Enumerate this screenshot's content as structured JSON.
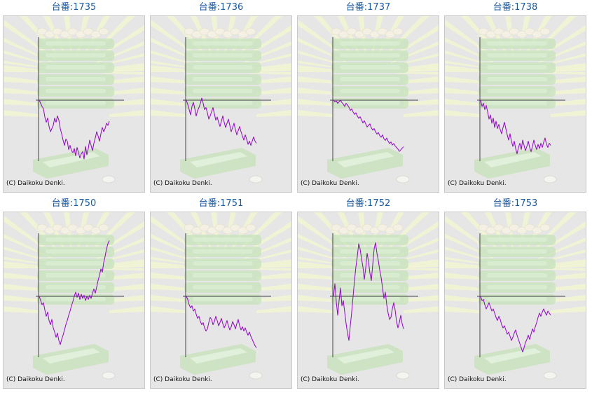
{
  "colors": {
    "title_text": "#1a5aa0",
    "background": "#e6e6e6",
    "line": "#9400d3",
    "axis": "#444444",
    "artwork_green": "#c9e2bd",
    "artwork_rays": "#f1f4d4"
  },
  "charts": [
    {
      "title": "台番:1735",
      "copyright": "(C) Daikoku Denki.",
      "chart_data": {
        "type": "line",
        "x": [
          0,
          1,
          2,
          3,
          4,
          5,
          6,
          7,
          8,
          9,
          10,
          11,
          12,
          13,
          14,
          15,
          16,
          17,
          18,
          19,
          20,
          21,
          22,
          23,
          24,
          25,
          26,
          27,
          28,
          29,
          30,
          31,
          32,
          33,
          34,
          35,
          36,
          37,
          38,
          39,
          40,
          41,
          42,
          43,
          44,
          45,
          46,
          47,
          48,
          49,
          50
        ],
        "values": [
          0,
          -300,
          -600,
          -800,
          -1600,
          -2100,
          -1700,
          -2500,
          -3000,
          -2700,
          -2400,
          -1700,
          -2100,
          -1500,
          -1900,
          -2700,
          -3200,
          -3800,
          -4300,
          -3700,
          -3900,
          -4700,
          -4300,
          -4800,
          -5000,
          -4600,
          -5300,
          -4500,
          -5000,
          -5500,
          -5100,
          -4900,
          -5600,
          -4400,
          -5200,
          -4600,
          -3800,
          -4300,
          -4800,
          -4100,
          -3600,
          -3000,
          -3400,
          -3900,
          -3200,
          -2600,
          -3000,
          -2700,
          -2200,
          -2400,
          -2000
        ],
        "ylim": [
          -6000,
          6000
        ],
        "grid": false
      }
    },
    {
      "title": "台番:1736",
      "copyright": "(C) Daikoku Denki.",
      "chart_data": {
        "type": "line",
        "x": [
          0,
          1,
          2,
          3,
          4,
          5,
          6,
          7,
          8,
          9,
          10,
          11,
          12,
          13,
          14,
          15,
          16,
          17,
          18,
          19,
          20,
          21,
          22,
          23,
          24,
          25,
          26,
          27,
          28,
          29,
          30,
          31,
          32,
          33,
          34,
          35,
          36,
          37,
          38,
          39,
          40,
          41,
          42,
          43,
          44,
          45,
          46,
          47,
          48,
          49,
          50
        ],
        "values": [
          0,
          -400,
          -900,
          -1400,
          -600,
          -200,
          -800,
          -1500,
          -1000,
          -700,
          -300,
          200,
          -300,
          -900,
          -700,
          -1200,
          -1800,
          -1500,
          -1100,
          -700,
          -1300,
          -1900,
          -1600,
          -2100,
          -2500,
          -2000,
          -1500,
          -2100,
          -2600,
          -2200,
          -1800,
          -2400,
          -3000,
          -2600,
          -2200,
          -2800,
          -3300,
          -2900,
          -2500,
          -3000,
          -3400,
          -3800,
          -3300,
          -3700,
          -4200,
          -3900,
          -4300,
          -3900,
          -3500,
          -3900,
          -4100
        ],
        "ylim": [
          -6000,
          6000
        ],
        "grid": false
      }
    },
    {
      "title": "台番:1737",
      "copyright": "(C) Daikoku Denki.",
      "chart_data": {
        "type": "line",
        "x": [
          0,
          1,
          2,
          3,
          4,
          5,
          6,
          7,
          8,
          9,
          10,
          11,
          12,
          13,
          14,
          15,
          16,
          17,
          18,
          19,
          20,
          21,
          22,
          23,
          24,
          25,
          26,
          27,
          28,
          29,
          30,
          31,
          32,
          33,
          34,
          35,
          36,
          37,
          38,
          39,
          40,
          41,
          42,
          43,
          44,
          45,
          46,
          47,
          48,
          49,
          50
        ],
        "values": [
          0,
          -200,
          -100,
          -400,
          -200,
          0,
          -300,
          -500,
          -800,
          -400,
          -600,
          -900,
          -1300,
          -1100,
          -1500,
          -1800,
          -1600,
          -2000,
          -2300,
          -2100,
          -2500,
          -2900,
          -2600,
          -3000,
          -3400,
          -3200,
          -3000,
          -3500,
          -3800,
          -3600,
          -4000,
          -4300,
          -4100,
          -4500,
          -4700,
          -4400,
          -4900,
          -5100,
          -4800,
          -5200,
          -5500,
          -5300,
          -5700,
          -5500,
          -5800,
          -6000,
          -6200,
          -6500,
          -6300,
          -6100,
          -5900
        ],
        "ylim": [
          -8000,
          8000
        ],
        "grid": false
      }
    },
    {
      "title": "台番:1738",
      "copyright": "(C) Daikoku Denki.",
      "chart_data": {
        "type": "line",
        "x": [
          0,
          1,
          2,
          3,
          4,
          5,
          6,
          7,
          8,
          9,
          10,
          11,
          12,
          13,
          14,
          15,
          16,
          17,
          18,
          19,
          20,
          21,
          22,
          23,
          24,
          25,
          26,
          27,
          28,
          29,
          30,
          31,
          32,
          33,
          34,
          35,
          36,
          37,
          38,
          39,
          40,
          41,
          42,
          43,
          44,
          45,
          46,
          47,
          48,
          49,
          50
        ],
        "values": [
          0,
          -600,
          -300,
          -900,
          -500,
          -1100,
          -1800,
          -1400,
          -2200,
          -1700,
          -2600,
          -2000,
          -2700,
          -2300,
          -2800,
          -3200,
          -2600,
          -2100,
          -2700,
          -3300,
          -3800,
          -3200,
          -3900,
          -4400,
          -3900,
          -4600,
          -5100,
          -4500,
          -4100,
          -4700,
          -3800,
          -4300,
          -4800,
          -4400,
          -3900,
          -4500,
          -4900,
          -4400,
          -3800,
          -4300,
          -4700,
          -4200,
          -4600,
          -4100,
          -4500,
          -4000,
          -3600,
          -4200,
          -4500,
          -4100,
          -4300
        ],
        "ylim": [
          -6000,
          6000
        ],
        "grid": false
      }
    },
    {
      "title": "台番:1750",
      "copyright": "(C) Daikoku Denki.",
      "chart_data": {
        "type": "line",
        "x": [
          0,
          1,
          2,
          3,
          4,
          5,
          6,
          7,
          8,
          9,
          10,
          11,
          12,
          13,
          14,
          15,
          16,
          17,
          18,
          19,
          20,
          21,
          22,
          23,
          24,
          25,
          26,
          27,
          28,
          29,
          30,
          31,
          32,
          33,
          34,
          35,
          36,
          37,
          38,
          39,
          40,
          41,
          42,
          43,
          44,
          45,
          46,
          47,
          48,
          49,
          50
        ],
        "values": [
          0,
          -400,
          -800,
          -600,
          -1300,
          -1900,
          -1500,
          -2300,
          -2700,
          -2200,
          -3000,
          -3400,
          -3900,
          -3500,
          -4200,
          -4600,
          -4100,
          -3700,
          -3200,
          -2700,
          -2300,
          -1800,
          -1400,
          -900,
          -500,
          0,
          400,
          -100,
          300,
          -300,
          200,
          -200,
          100,
          -400,
          0,
          -300,
          100,
          -200,
          300,
          700,
          300,
          900,
          1500,
          2000,
          2600,
          2300,
          3200,
          3800,
          4500,
          5000,
          5300
        ],
        "ylim": [
          -6000,
          6000
        ],
        "grid": false
      }
    },
    {
      "title": "台番:1751",
      "copyright": "(C) Daikoku Denki.",
      "chart_data": {
        "type": "line",
        "x": [
          0,
          1,
          2,
          3,
          4,
          5,
          6,
          7,
          8,
          9,
          10,
          11,
          12,
          13,
          14,
          15,
          16,
          17,
          18,
          19,
          20,
          21,
          22,
          23,
          24,
          25,
          26,
          27,
          28,
          29,
          30,
          31,
          32,
          33,
          34,
          35,
          36,
          37,
          38,
          39,
          40,
          41,
          42,
          43,
          44,
          45,
          46,
          47,
          48,
          49,
          50
        ],
        "values": [
          0,
          -300,
          -800,
          -1100,
          -900,
          -1400,
          -1200,
          -1700,
          -2100,
          -1900,
          -2400,
          -2700,
          -2500,
          -3000,
          -3300,
          -3100,
          -2500,
          -2000,
          -2200,
          -2700,
          -2400,
          -1900,
          -2300,
          -2800,
          -2500,
          -2100,
          -2600,
          -3000,
          -2700,
          -2300,
          -2800,
          -3200,
          -2900,
          -2400,
          -2700,
          -3100,
          -2600,
          -2200,
          -2800,
          -3200,
          -2900,
          -3300,
          -3000,
          -3400,
          -3700,
          -3400,
          -3800,
          -4100,
          -4400,
          -4700,
          -4900
        ],
        "ylim": [
          -6000,
          6000
        ],
        "grid": false
      }
    },
    {
      "title": "台番:1752",
      "copyright": "(C) Daikoku Denki.",
      "chart_data": {
        "type": "line",
        "x": [
          0,
          1,
          2,
          3,
          4,
          5,
          6,
          7,
          8,
          9,
          10,
          11,
          12,
          13,
          14,
          15,
          16,
          17,
          18,
          19,
          20,
          21,
          22,
          23,
          24,
          25,
          26,
          27,
          28,
          29,
          30,
          31,
          32,
          33,
          34,
          35,
          36,
          37,
          38,
          39,
          40,
          41,
          42,
          43,
          44,
          45,
          46,
          47,
          48,
          49,
          50
        ],
        "values": [
          0,
          1200,
          -500,
          -1800,
          -400,
          800,
          -900,
          -400,
          -1500,
          -2600,
          -3500,
          -4200,
          -2800,
          -1500,
          0,
          1500,
          2800,
          3800,
          5000,
          4500,
          3600,
          2800,
          1600,
          2700,
          4100,
          3300,
          2200,
          1500,
          3000,
          4500,
          5100,
          4100,
          3400,
          2500,
          1800,
          800,
          -200,
          400,
          -800,
          -1600,
          -2200,
          -2000,
          -1200,
          -600,
          -1300,
          -2400,
          -3000,
          -2500,
          -1800,
          -2600,
          -3100
        ],
        "ylim": [
          -6000,
          6000
        ],
        "grid": false
      }
    },
    {
      "title": "台番:1753",
      "copyright": "(C) Daikoku Denki.",
      "chart_data": {
        "type": "line",
        "x": [
          0,
          1,
          2,
          3,
          4,
          5,
          6,
          7,
          8,
          9,
          10,
          11,
          12,
          13,
          14,
          15,
          16,
          17,
          18,
          19,
          20,
          21,
          22,
          23,
          24,
          25,
          26,
          27,
          28,
          29,
          30,
          31,
          32,
          33,
          34,
          35,
          36,
          37,
          38,
          39,
          40,
          41,
          42,
          43,
          44,
          45,
          46,
          47,
          48,
          49,
          50
        ],
        "values": [
          0,
          -400,
          -300,
          -800,
          -1200,
          -900,
          -600,
          -1000,
          -1400,
          -1200,
          -1600,
          -2000,
          -2300,
          -1900,
          -2200,
          -2700,
          -3000,
          -2800,
          -3200,
          -3600,
          -3400,
          -3800,
          -4200,
          -3900,
          -3500,
          -3200,
          -3700,
          -4100,
          -4500,
          -4900,
          -5300,
          -4900,
          -4400,
          -4100,
          -3700,
          -4100,
          -3600,
          -3100,
          -3400,
          -2900,
          -2500,
          -2000,
          -1600,
          -1900,
          -1500,
          -1200,
          -1500,
          -1800,
          -1400,
          -1600,
          -1800
        ],
        "ylim": [
          -6000,
          6000
        ],
        "grid": false
      }
    }
  ]
}
